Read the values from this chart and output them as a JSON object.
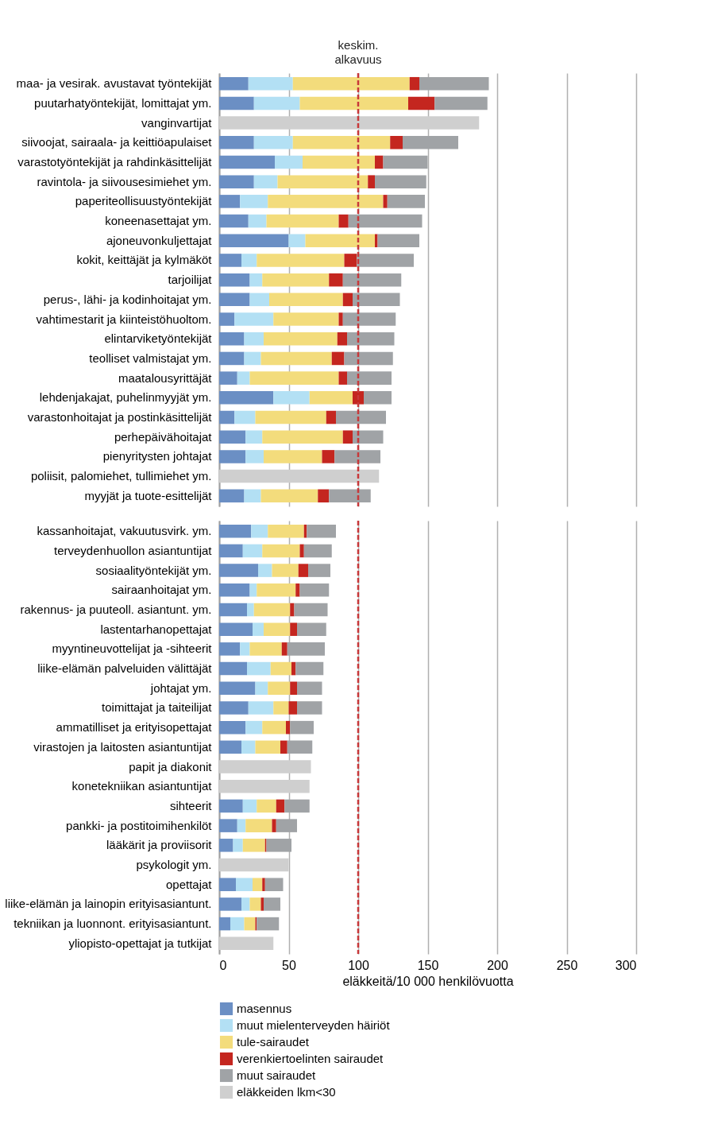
{
  "chart_data": [
    {
      "type": "bar",
      "orientation": "horizontal",
      "stacked": true,
      "grid": "x",
      "tick_labels": "y",
      "legend": false,
      "categories": [
        "maa- ja vesirak. avustavat työntekijät",
        "puutarhatyöntekijät, lomittajat ym.",
        "vanginvartijat",
        "siivoojat, sairaala- ja keittiöapulaiset",
        "varastotyöntekijät ja rahdinkäsittelijät",
        "ravintola- ja siivousesimiehet ym.",
        "paperiteollisuustyöntekijät",
        "koneenasettajat ym.",
        "ajoneuvonkuljettajat",
        "kokit, keittäjät ja kylmäköt",
        "tarjoilijat",
        "perus-, lähi- ja kodinhoitajat ym.",
        "vahtimestarit ja kiinteistöhuoltom.",
        "elintarviketyöntekijät",
        "teolliset valmistajat ym.",
        "maatalousyrittäjät",
        "lehdenjakajat, puhelinmyyjät ym.",
        "varastonhoitajat ja postinkäsittelijät",
        "perhepäivähoitajat",
        "pienyritysten johtajat",
        "poliisit, palomiehet, tullimiehet ym.",
        "myyjät ja tuote-esittelijät"
      ],
      "xlim": [
        0,
        300
      ],
      "xticks": [
        0,
        50,
        100,
        150,
        200,
        250,
        300
      ],
      "ref_lines": [
        {
          "axis": "x",
          "value": 100,
          "label": "keskim. alkavuus",
          "color": "#c8383a",
          "line_style": "dashed"
        }
      ],
      "series": [
        {
          "color": "#6b8fc4",
          "values": [
            21,
            25,
            null,
            25,
            40,
            25,
            15,
            21,
            50,
            16,
            22,
            22,
            11,
            18,
            18,
            13,
            39,
            11,
            19,
            19,
            null,
            18
          ]
        },
        {
          "color": "#b3e0f4",
          "values": [
            32,
            33,
            null,
            28,
            20,
            17,
            20,
            13,
            12,
            11,
            9,
            14,
            28,
            14,
            12,
            9,
            26,
            15,
            12,
            13,
            null,
            12
          ]
        },
        {
          "color": "#f3dc7c",
          "values": [
            84,
            78,
            null,
            70,
            52,
            65,
            83,
            52,
            50,
            63,
            48,
            53,
            47,
            53,
            51,
            64,
            31,
            51,
            58,
            42,
            null,
            41
          ]
        },
        {
          "color": "#c4261f",
          "values": [
            7,
            19,
            null,
            9,
            6,
            5,
            3,
            7,
            2,
            9,
            10,
            7,
            3,
            7,
            9,
            6,
            8,
            7,
            7,
            9,
            null,
            8
          ]
        },
        {
          "color": "#a0a3a6",
          "values": [
            50,
            38,
            null,
            40,
            32,
            37,
            27,
            53,
            30,
            41,
            42,
            34,
            38,
            34,
            35,
            32,
            20,
            36,
            22,
            33,
            null,
            30
          ]
        },
        {
          "color": "#cfcfcf",
          "values": [
            null,
            null,
            187,
            null,
            null,
            null,
            null,
            null,
            null,
            null,
            null,
            null,
            null,
            null,
            null,
            null,
            null,
            null,
            null,
            null,
            115,
            null
          ]
        }
      ]
    },
    {
      "type": "bar",
      "orientation": "horizontal",
      "stacked": true,
      "grid": "x",
      "legend": "bottom",
      "xlabel": "eläkkeitä/10 000 henkilövuotta",
      "categories": [
        "kassanhoitajat, vakuutusvirk. ym.",
        "terveydenhuollon asiantuntijat",
        "sosiaalityöntekijät ym.",
        "sairaanhoitajat ym.",
        "rakennus- ja puuteoll. asiantunt. ym.",
        "lastentarhanopettajat",
        "myyntineuvottelijat ja -sihteerit",
        "liike-elämän palveluiden välittäjät",
        "johtajat ym.",
        "toimittajat ja taiteilijat",
        "ammatilliset ja erityisopettajat",
        "virastojen ja laitosten asiantuntijat",
        "papit ja diakonit",
        "konetekniikan asiantuntijat",
        "sihteerit",
        "pankki- ja postitoimihenkilöt",
        "lääkärit ja proviisorit",
        "psykologit ym.",
        "opettajat",
        "liike-elämän ja lainopin erityisasiantunt.",
        "tekniikan ja luonnont. erityisasiantunt.",
        "yliopisto-opettajat ja tutkijat"
      ],
      "xlim": [
        0,
        300
      ],
      "xticks": [
        0,
        50,
        100,
        150,
        200,
        250,
        300
      ],
      "ref_lines": [
        {
          "axis": "x",
          "value": 100,
          "color": "#c8383a",
          "line_style": "dashed"
        }
      ],
      "series": [
        {
          "name": "masennus",
          "color": "#6b8fc4",
          "values": [
            23,
            17,
            28,
            22,
            20,
            24,
            15,
            20,
            26,
            21,
            19,
            16,
            null,
            null,
            17,
            13,
            10,
            null,
            12,
            16,
            8,
            null
          ]
        },
        {
          "name": "muut mielenterveyden häiriöt",
          "color": "#b3e0f4",
          "values": [
            12,
            14,
            10,
            5,
            5,
            8,
            7,
            17,
            9,
            18,
            12,
            10,
            null,
            null,
            10,
            6,
            7,
            null,
            12,
            6,
            10,
            null
          ]
        },
        {
          "name": "tule-sairaudet",
          "color": "#f3dc7c",
          "values": [
            26,
            27,
            19,
            28,
            26,
            19,
            23,
            15,
            16,
            11,
            17,
            18,
            null,
            null,
            14,
            19,
            16,
            null,
            7,
            8,
            8,
            null
          ]
        },
        {
          "name": "verenkiertoelinten sairaudet",
          "color": "#c4261f",
          "values": [
            2,
            3,
            7,
            3,
            3,
            5,
            4,
            3,
            5,
            6,
            3,
            5,
            null,
            null,
            6,
            3,
            1,
            null,
            2,
            2,
            1,
            null
          ]
        },
        {
          "name": "muut sairaudet",
          "color": "#a0a3a6",
          "values": [
            21,
            20,
            16,
            21,
            24,
            21,
            27,
            20,
            18,
            18,
            17,
            18,
            null,
            null,
            18,
            15,
            18,
            null,
            13,
            12,
            16,
            null
          ]
        },
        {
          "name": "eläkkeiden lkm<30",
          "color": "#cfcfcf",
          "values": [
            null,
            null,
            null,
            null,
            null,
            null,
            null,
            null,
            null,
            null,
            null,
            null,
            66,
            65,
            null,
            null,
            null,
            50,
            null,
            null,
            null,
            39
          ]
        }
      ]
    }
  ]
}
